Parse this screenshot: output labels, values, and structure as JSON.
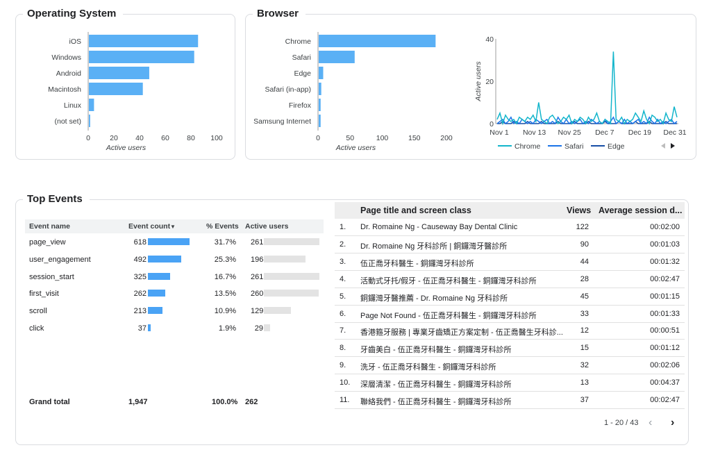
{
  "os": {
    "title": "Operating System",
    "chart_data": {
      "type": "bar",
      "orientation": "horizontal",
      "categories": [
        "iOS",
        "Windows",
        "Android",
        "Macintosh",
        "Linux",
        "(not set)"
      ],
      "values": [
        85,
        82,
        47,
        42,
        4,
        1
      ],
      "xlabel": "Active users",
      "xlim": [
        0,
        100
      ],
      "xticks": [
        "0",
        "20",
        "40",
        "60",
        "80",
        "100"
      ],
      "color": "#5ab0f5"
    }
  },
  "browser": {
    "title": "Browser",
    "chart_data": {
      "type": "bar",
      "orientation": "horizontal",
      "categories": [
        "Chrome",
        "Safari",
        "Edge",
        "Safari (in-app)",
        "Firefox",
        "Samsung Internet"
      ],
      "values": [
        182,
        56,
        7,
        4,
        3,
        3
      ],
      "xlabel": "Active users",
      "xlim": [
        0,
        200
      ],
      "xticks": [
        "0",
        "50",
        "100",
        "150",
        "200"
      ],
      "color": "#5ab0f5"
    },
    "line_chart": {
      "type": "line",
      "ylabel": "Active users",
      "ylim": [
        0,
        40
      ],
      "yticks": [
        "0",
        "20",
        "40"
      ],
      "xticks": [
        "Nov 1",
        "Nov 13",
        "Nov 25",
        "Dec 7",
        "Dec 19",
        "Dec 31"
      ],
      "series": [
        {
          "name": "Chrome",
          "color": "#12b5cb",
          "values": [
            2,
            5,
            0,
            4,
            2,
            1,
            2,
            0,
            3,
            2,
            1,
            3,
            2,
            4,
            1,
            10,
            2,
            1,
            0,
            3,
            4,
            2,
            0,
            1,
            3,
            2,
            4,
            0,
            2,
            1,
            3,
            2,
            0,
            3,
            1,
            2,
            5,
            1,
            0,
            2,
            1,
            0,
            34,
            2,
            1,
            3,
            0,
            2,
            1,
            2,
            5,
            3,
            1,
            6,
            2,
            0,
            4,
            3,
            1,
            2,
            0,
            5,
            2,
            1,
            8,
            3
          ]
        },
        {
          "name": "Safari",
          "color": "#1a73e8",
          "values": [
            0,
            1,
            2,
            0,
            1,
            3,
            0,
            1,
            0,
            2,
            1,
            0,
            1,
            0,
            2,
            1,
            0,
            1,
            2,
            0,
            1,
            0,
            3,
            1,
            0,
            2,
            0,
            1,
            0,
            1,
            2,
            0,
            1,
            0,
            2,
            1,
            0,
            1,
            0,
            2,
            0,
            1,
            3,
            0,
            1,
            0,
            2,
            0,
            1,
            0,
            1,
            2,
            0,
            1,
            0,
            3,
            1,
            0,
            2,
            0,
            1,
            0,
            1,
            2,
            0,
            1
          ]
        },
        {
          "name": "Edge",
          "color": "#174ea6",
          "values": [
            0,
            0,
            1,
            0,
            0,
            0,
            1,
            0,
            0,
            0,
            0,
            1,
            0,
            0,
            0,
            0,
            1,
            0,
            0,
            0,
            0,
            0,
            1,
            0,
            0,
            0,
            0,
            0,
            1,
            0,
            0,
            0,
            0,
            1,
            0,
            0,
            0,
            0,
            0,
            1,
            0,
            0,
            0,
            0,
            1,
            0,
            0,
            0,
            0,
            0,
            1,
            0,
            0,
            0,
            0,
            1,
            0,
            0,
            0,
            0,
            0,
            1,
            0,
            0,
            0,
            0
          ]
        }
      ],
      "legend": [
        "Chrome",
        "Safari",
        "Edge"
      ]
    }
  },
  "events": {
    "title": "Top Events",
    "headers": {
      "name": "Event name",
      "count": "Event count",
      "pct": "% Events",
      "users": "Active users"
    },
    "sort_icon": "arrow-down",
    "rows": [
      {
        "name": "page_view",
        "count": "618",
        "count_n": 618,
        "pct": "31.7%",
        "users": "261",
        "users_n": 261
      },
      {
        "name": "user_engagement",
        "count": "492",
        "count_n": 492,
        "pct": "25.3%",
        "users": "196",
        "users_n": 196
      },
      {
        "name": "session_start",
        "count": "325",
        "count_n": 325,
        "pct": "16.7%",
        "users": "261",
        "users_n": 261
      },
      {
        "name": "first_visit",
        "count": "262",
        "count_n": 262,
        "pct": "13.5%",
        "users": "260",
        "users_n": 260
      },
      {
        "name": "scroll",
        "count": "213",
        "count_n": 213,
        "pct": "10.9%",
        "users": "129",
        "users_n": 129
      },
      {
        "name": "click",
        "count": "37",
        "count_n": 37,
        "pct": "1.9%",
        "users": "29",
        "users_n": 29
      }
    ],
    "total": {
      "label": "Grand total",
      "count": "1,947",
      "pct": "100.0%",
      "users": "262"
    }
  },
  "pages": {
    "headers": {
      "title": "Page title and screen class",
      "views": "Views",
      "avg": "Average session d..."
    },
    "rows": [
      {
        "n": "1.",
        "title": "Dr. Romaine Ng - Causeway Bay Dental Clinic",
        "views": "122",
        "avg": "00:02:00"
      },
      {
        "n": "2.",
        "title": "Dr. Romaine Ng 牙科診所 | 銅鑼灣牙醫診所",
        "views": "90",
        "avg": "00:01:03"
      },
      {
        "n": "3.",
        "title": "伍正喬牙科醫生 - 銅鑼灣牙科診所",
        "views": "44",
        "avg": "00:01:32"
      },
      {
        "n": "4.",
        "title": "活動式牙托/假牙 - 伍正喬牙科醫生 - 銅鑼灣牙科診所",
        "views": "28",
        "avg": "00:02:47"
      },
      {
        "n": "5.",
        "title": "銅鑼灣牙醫推薦 - Dr. Romaine Ng 牙科診所",
        "views": "45",
        "avg": "00:01:15"
      },
      {
        "n": "6.",
        "title": "Page Not Found - 伍正喬牙科醫生 - 銅鑼灣牙科診所",
        "views": "33",
        "avg": "00:01:33"
      },
      {
        "n": "7.",
        "title": "香港箍牙服務 | 專業牙齒矯正方案定制 - 伍正喬醫生牙科診...",
        "views": "12",
        "avg": "00:00:51"
      },
      {
        "n": "8.",
        "title": "牙齒美白 - 伍正喬牙科醫生 - 銅鑼灣牙科診所",
        "views": "15",
        "avg": "00:01:12"
      },
      {
        "n": "9.",
        "title": "洗牙 - 伍正喬牙科醫生 - 銅鑼灣牙科診所",
        "views": "32",
        "avg": "00:02:06"
      },
      {
        "n": "10.",
        "title": "深層清潔 - 伍正喬牙科醫生 - 銅鑼灣牙科診所",
        "views": "13",
        "avg": "00:04:37"
      },
      {
        "n": "11.",
        "title": "聯絡我們 - 伍正喬牙科醫生 - 銅鑼灣牙科診所",
        "views": "37",
        "avg": "00:02:47"
      }
    ],
    "pagination": "1 - 20 / 43",
    "prev_icon": "chevron-left-icon",
    "next_icon": "chevron-right-icon"
  }
}
